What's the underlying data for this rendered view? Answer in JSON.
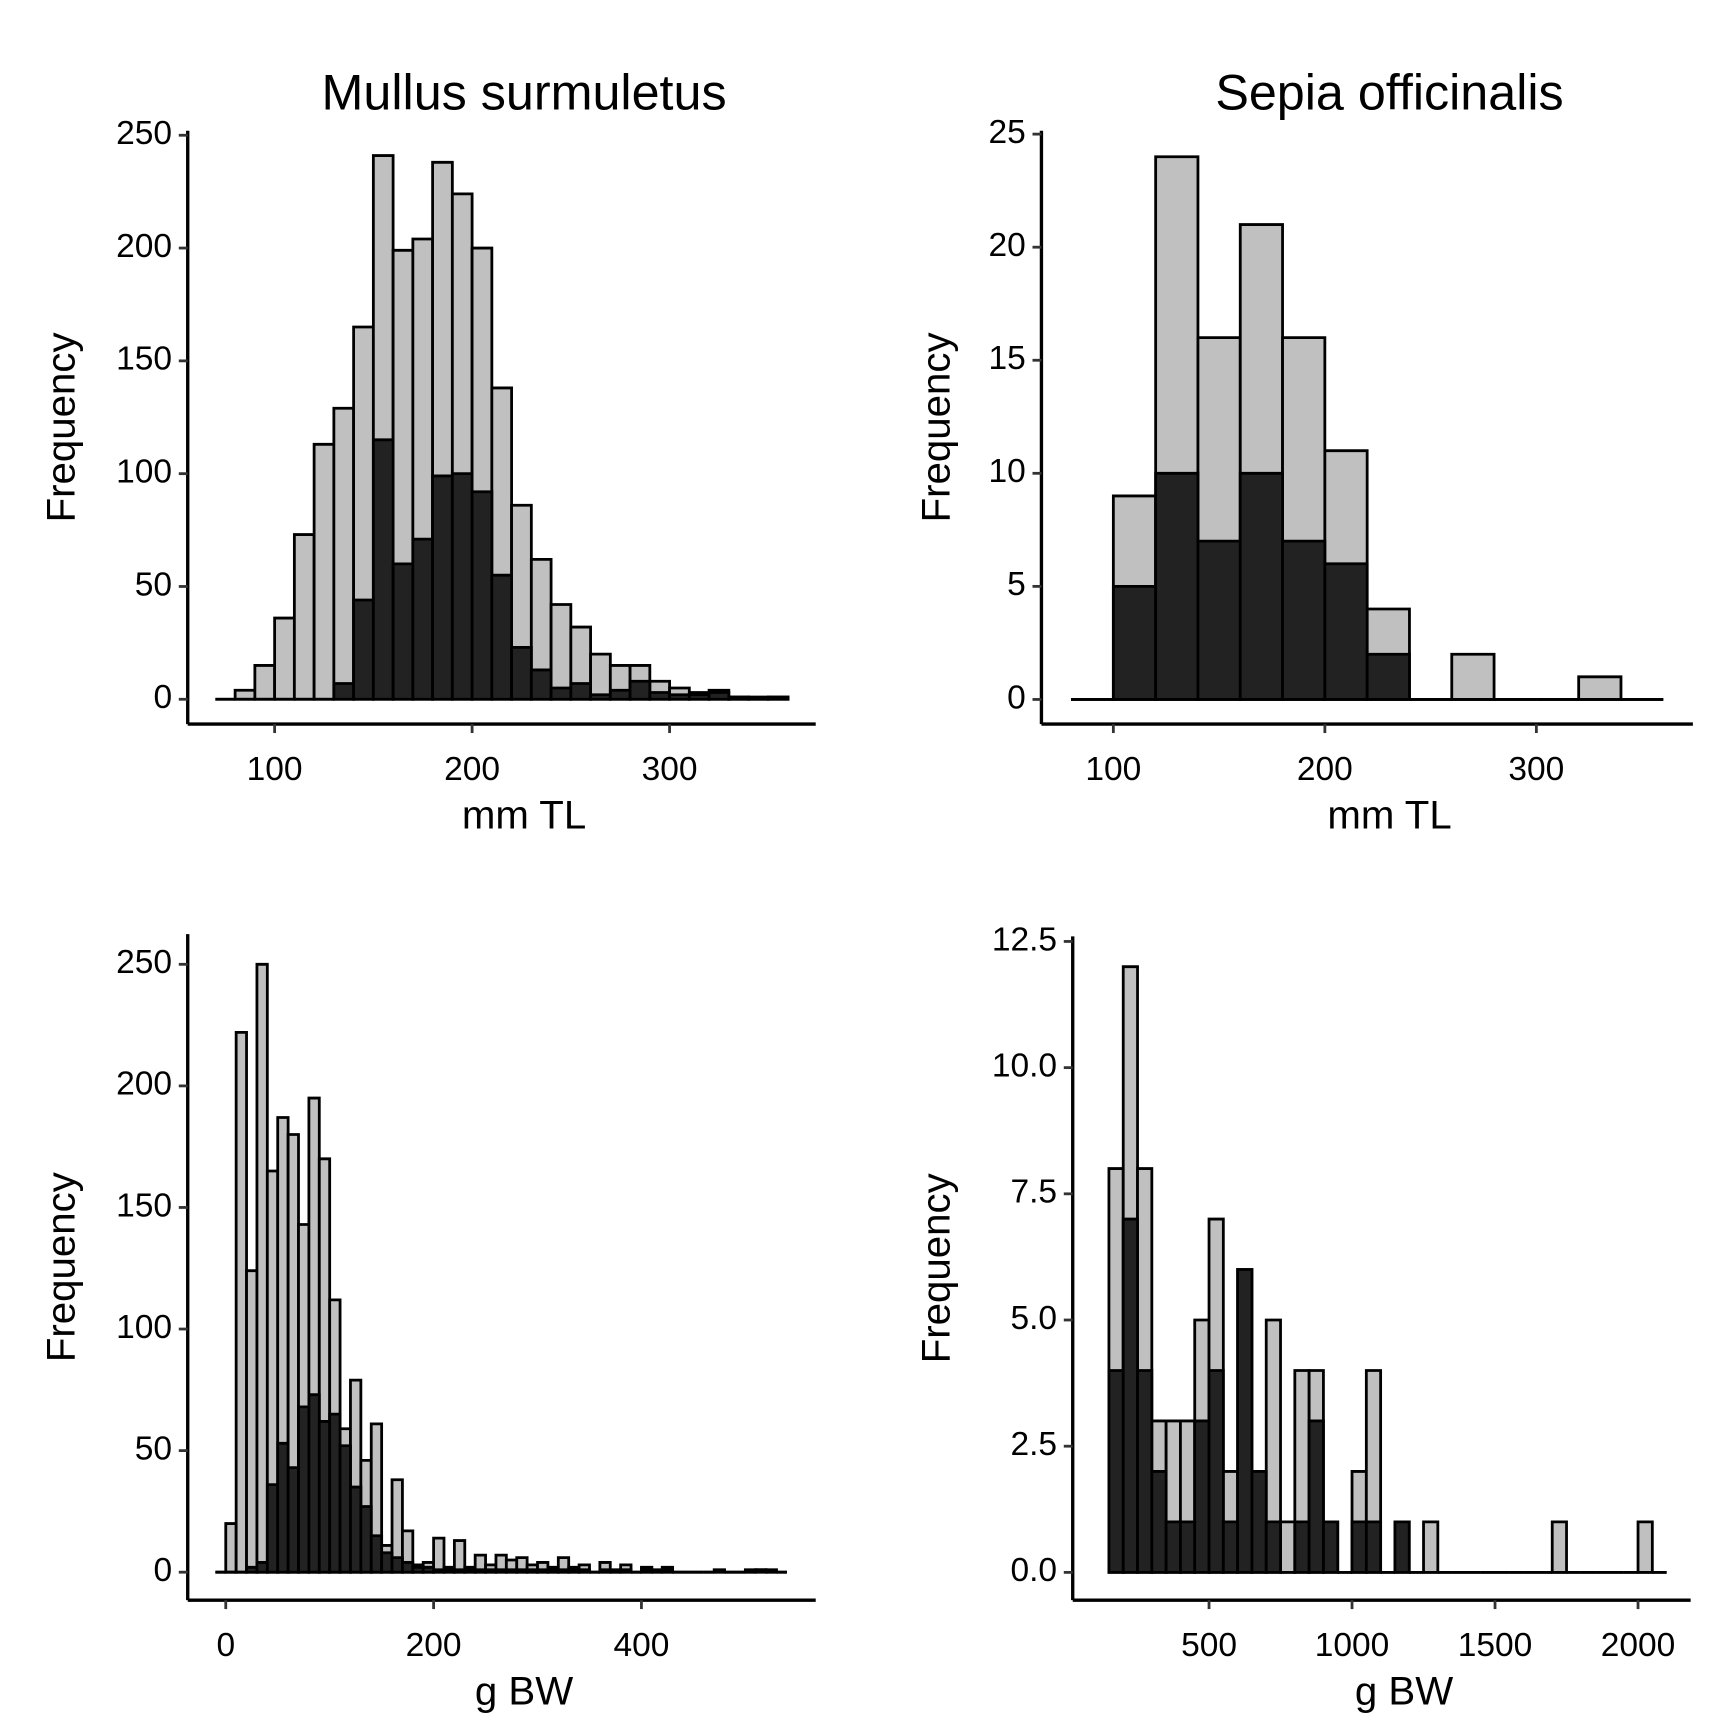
{
  "chart_data": [
    {
      "type": "histogram",
      "title": "Mullus surmuletus",
      "xlabel": "mm TL",
      "ylabel": "Frequency",
      "bins": [
        70,
        80,
        90,
        100,
        110,
        120,
        130,
        140,
        150,
        160,
        170,
        180,
        190,
        200,
        210,
        220,
        230,
        240,
        250,
        260,
        270,
        280,
        290,
        300,
        310,
        320,
        330,
        340,
        350,
        360
      ],
      "series": [
        {
          "color": "#c0c0c0",
          "values": [
            0,
            4,
            15,
            36,
            73,
            113,
            129,
            165,
            241,
            199,
            204,
            238,
            224,
            200,
            138,
            86,
            62,
            42,
            32,
            20,
            15,
            15,
            8,
            5,
            3,
            4,
            1,
            1,
            1
          ]
        },
        {
          "color": "#222222",
          "values": [
            0,
            0,
            0,
            0,
            0,
            0,
            7,
            44,
            115,
            60,
            71,
            99,
            100,
            92,
            55,
            23,
            13,
            5,
            7,
            2,
            4,
            8,
            3,
            2,
            2,
            3,
            1,
            0,
            1
          ]
        }
      ],
      "xlim": [
        56,
        374
      ],
      "ylim": [
        -11,
        252
      ],
      "xticks": [
        100,
        200,
        300
      ],
      "yticks": [
        0,
        50,
        100,
        150,
        200,
        250
      ]
    },
    {
      "type": "histogram",
      "title": "Sepia officinalis",
      "xlabel": "mm TL",
      "ylabel": "Frequency",
      "bins": [
        80,
        100,
        120,
        140,
        160,
        180,
        200,
        220,
        240,
        260,
        280,
        300,
        320,
        340,
        360
      ],
      "series": [
        {
          "color": "#c0c0c0",
          "values": [
            0,
            9,
            24,
            16,
            21,
            16,
            11,
            4,
            0,
            2,
            0,
            0,
            1,
            0
          ]
        },
        {
          "color": "#222222",
          "values": [
            0,
            5,
            10,
            7,
            10,
            7,
            6,
            2,
            0,
            0,
            0,
            0,
            0,
            0
          ]
        }
      ],
      "xlim": [
        66,
        374
      ],
      "ylim": [
        -1.09,
        25.15
      ],
      "xticks": [
        100,
        200,
        300
      ],
      "yticks": [
        0,
        5,
        10,
        15,
        20,
        25
      ]
    },
    {
      "type": "histogram",
      "xlabel": "g BW",
      "ylabel": "Frequency",
      "bins": [
        -10,
        0,
        10,
        20,
        30,
        40,
        50,
        60,
        70,
        80,
        90,
        100,
        110,
        120,
        130,
        140,
        150,
        160,
        170,
        180,
        190,
        200,
        210,
        220,
        230,
        240,
        250,
        260,
        270,
        280,
        290,
        300,
        310,
        320,
        330,
        340,
        350,
        360,
        370,
        380,
        390,
        400,
        410,
        420,
        430,
        440,
        450,
        460,
        470,
        480,
        490,
        500,
        510,
        520,
        530,
        540
      ],
      "series": [
        {
          "color": "#c0c0c0",
          "values": [
            0,
            20,
            222,
            124,
            250,
            165,
            187,
            180,
            143,
            195,
            170,
            112,
            59,
            79,
            46,
            61,
            11,
            38,
            17,
            3,
            4,
            14,
            2,
            13,
            2,
            7,
            3,
            7,
            5,
            6,
            3,
            4,
            2,
            6,
            2,
            3,
            0,
            4,
            1,
            3,
            0,
            2,
            1,
            2,
            0,
            0,
            0,
            0,
            1,
            0,
            0,
            1,
            1,
            1,
            0
          ]
        },
        {
          "color": "#222222",
          "values": [
            0,
            0,
            0,
            2,
            4,
            36,
            53,
            43,
            68,
            73,
            62,
            65,
            52,
            35,
            27,
            15,
            8,
            6,
            4,
            2,
            2,
            1,
            1,
            1,
            1,
            1,
            1,
            1,
            1,
            1,
            1,
            1,
            1,
            1,
            1,
            1,
            0,
            1,
            0,
            1,
            0,
            1,
            0,
            1,
            0,
            0,
            0,
            0,
            0,
            0,
            0,
            0,
            1,
            0,
            0
          ]
        }
      ],
      "xlim": [
        -36.6,
        567.7
      ],
      "ylim": [
        -11.5,
        262.4
      ],
      "xticks": [
        0,
        200,
        400
      ],
      "yticks": [
        0,
        50,
        100,
        150,
        200,
        250
      ]
    },
    {
      "type": "histogram",
      "xlabel": "g BW",
      "ylabel": "Frequency",
      "bins": [
        150,
        200,
        250,
        300,
        350,
        400,
        450,
        500,
        550,
        600,
        650,
        700,
        750,
        800,
        850,
        900,
        950,
        1000,
        1050,
        1100,
        1150,
        1200,
        1250,
        1300,
        1350,
        1400,
        1450,
        1500,
        1550,
        1600,
        1650,
        1700,
        1750,
        1800,
        1850,
        1900,
        1950,
        2000,
        2050,
        2100
      ],
      "series": [
        {
          "color": "#c0c0c0",
          "values": [
            8,
            12,
            8,
            3,
            3,
            3,
            5,
            7,
            2,
            6,
            2,
            5,
            1,
            4,
            4,
            1,
            0,
            2,
            4,
            0,
            1,
            0,
            1,
            0,
            0,
            0,
            0,
            0,
            0,
            0,
            0,
            1,
            0,
            0,
            0,
            0,
            0,
            1,
            0
          ]
        },
        {
          "color": "#222222",
          "values": [
            4,
            7,
            4,
            2,
            1,
            1,
            3,
            4,
            1,
            6,
            2,
            1,
            0,
            1,
            3,
            1,
            0,
            1,
            1,
            0,
            1,
            0,
            0,
            0,
            0,
            0,
            0,
            0,
            0,
            0,
            0,
            0,
            0,
            0,
            0,
            0,
            0,
            0,
            0
          ]
        }
      ],
      "xlim": [
        23.4,
        2184
      ],
      "ylim": [
        -0.55,
        12.6
      ],
      "xticks": [
        500,
        1000,
        1500,
        2000
      ],
      "yticks": [
        {
          "value": 0,
          "label": "0.0"
        },
        2.5,
        {
          "value": 5,
          "label": "5.0"
        },
        7.5,
        {
          "value": 10,
          "label": "10.0"
        },
        12.5
      ]
    }
  ]
}
